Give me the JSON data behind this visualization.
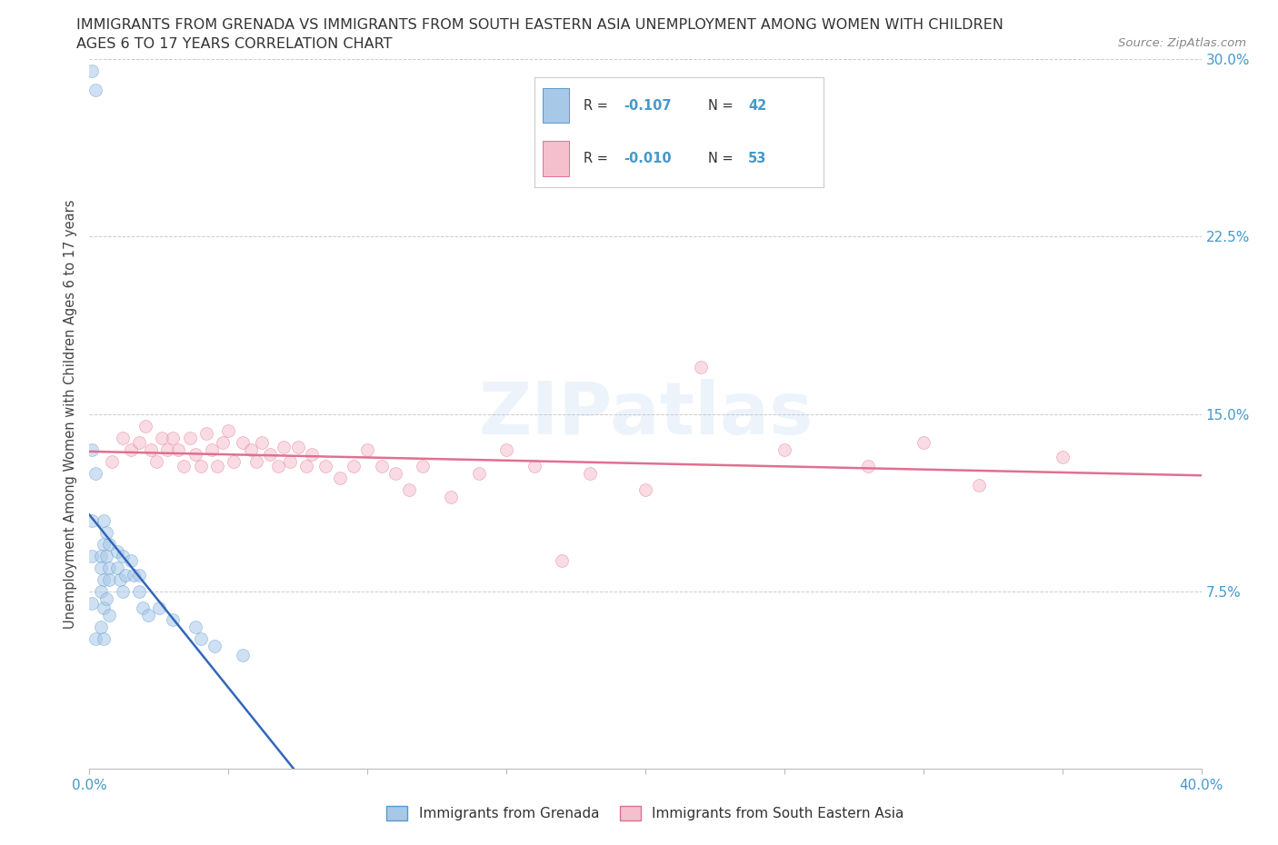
{
  "title_line1": "IMMIGRANTS FROM GRENADA VS IMMIGRANTS FROM SOUTH EASTERN ASIA UNEMPLOYMENT AMONG WOMEN WITH CHILDREN",
  "title_line2": "AGES 6 TO 17 YEARS CORRELATION CHART",
  "source": "Source: ZipAtlas.com",
  "ylabel": "Unemployment Among Women with Children Ages 6 to 17 years",
  "xlim": [
    0.0,
    0.4
  ],
  "ylim": [
    0.0,
    0.3
  ],
  "xticks": [
    0.0,
    0.05,
    0.1,
    0.15,
    0.2,
    0.25,
    0.3,
    0.35,
    0.4
  ],
  "yticks": [
    0.0,
    0.075,
    0.15,
    0.225,
    0.3
  ],
  "yticklabels": [
    "",
    "7.5%",
    "15.0%",
    "22.5%",
    "30.0%"
  ],
  "grid_color": "#cccccc",
  "background_color": "#ffffff",
  "watermark": "ZIPatlas",
  "grenada_color": "#a8c8e8",
  "grenada_edge": "#5599cc",
  "grenada_R": -0.107,
  "grenada_N": 42,
  "grenada_x": [
    0.001,
    0.002,
    0.001,
    0.002,
    0.001,
    0.001,
    0.001,
    0.002,
    0.005,
    0.005,
    0.004,
    0.004,
    0.005,
    0.004,
    0.005,
    0.004,
    0.005,
    0.006,
    0.007,
    0.006,
    0.007,
    0.007,
    0.006,
    0.007,
    0.01,
    0.01,
    0.011,
    0.012,
    0.013,
    0.012,
    0.015,
    0.016,
    0.018,
    0.018,
    0.019,
    0.021,
    0.025,
    0.03,
    0.038,
    0.04,
    0.045,
    0.055
  ],
  "grenada_y": [
    0.295,
    0.287,
    0.135,
    0.125,
    0.105,
    0.09,
    0.07,
    0.055,
    0.105,
    0.095,
    0.09,
    0.085,
    0.08,
    0.075,
    0.068,
    0.06,
    0.055,
    0.1,
    0.095,
    0.09,
    0.085,
    0.08,
    0.072,
    0.065,
    0.092,
    0.085,
    0.08,
    0.09,
    0.082,
    0.075,
    0.088,
    0.082,
    0.082,
    0.075,
    0.068,
    0.065,
    0.068,
    0.063,
    0.06,
    0.055,
    0.052,
    0.048
  ],
  "sea_color": "#f5bfcd",
  "sea_edge": "#e07090",
  "sea_R": -0.01,
  "sea_N": 53,
  "sea_x": [
    0.008,
    0.012,
    0.015,
    0.018,
    0.02,
    0.022,
    0.024,
    0.026,
    0.028,
    0.03,
    0.032,
    0.034,
    0.036,
    0.038,
    0.04,
    0.042,
    0.044,
    0.046,
    0.048,
    0.05,
    0.052,
    0.055,
    0.058,
    0.06,
    0.062,
    0.065,
    0.068,
    0.07,
    0.072,
    0.075,
    0.078,
    0.08,
    0.085,
    0.09,
    0.095,
    0.1,
    0.105,
    0.11,
    0.115,
    0.12,
    0.13,
    0.14,
    0.15,
    0.16,
    0.17,
    0.18,
    0.2,
    0.22,
    0.25,
    0.28,
    0.3,
    0.32,
    0.35
  ],
  "sea_y": [
    0.13,
    0.14,
    0.135,
    0.138,
    0.145,
    0.135,
    0.13,
    0.14,
    0.135,
    0.14,
    0.135,
    0.128,
    0.14,
    0.133,
    0.128,
    0.142,
    0.135,
    0.128,
    0.138,
    0.143,
    0.13,
    0.138,
    0.135,
    0.13,
    0.138,
    0.133,
    0.128,
    0.136,
    0.13,
    0.136,
    0.128,
    0.133,
    0.128,
    0.123,
    0.128,
    0.135,
    0.128,
    0.125,
    0.118,
    0.128,
    0.115,
    0.125,
    0.135,
    0.128,
    0.088,
    0.125,
    0.118,
    0.17,
    0.135,
    0.128,
    0.138,
    0.12,
    0.132
  ],
  "legend_label1": "Immigrants from Grenada",
  "legend_label2": "Immigrants from South Eastern Asia",
  "marker_size": 100,
  "alpha": 0.55,
  "line_width": 1.8
}
